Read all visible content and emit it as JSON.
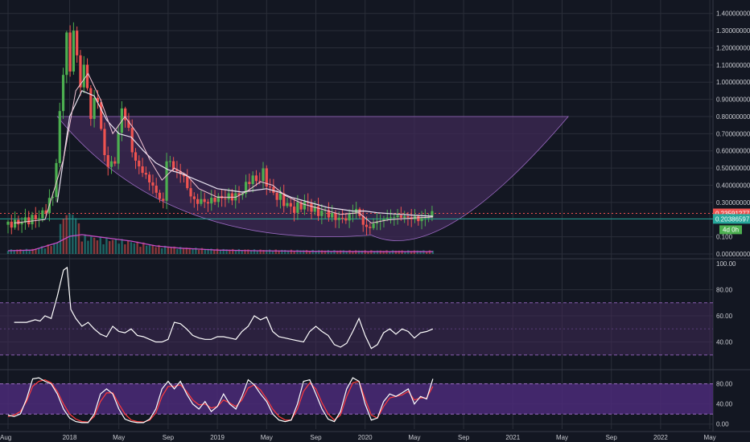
{
  "colors": {
    "background": "#131722",
    "grid": "#2a2e39",
    "up": "#26a69a",
    "up_strong": "#4caf50",
    "down": "#ef5350",
    "ma": "#e8e2f0",
    "band": "#3f2a56",
    "rsi_line": "#ffffff",
    "stoch_k": "#ffffff",
    "stoch_d": "#ff3b3b",
    "vol_ma": "#c44dc6",
    "price_red_tag": "#ef5350",
    "price_green_tag": "#26a69a",
    "countdown_tag": "#4caf50"
  },
  "chart_data": [
    {
      "type": "candlestick",
      "panel": "price",
      "y_axis_ticks": [
        "1.40000000",
        "1.30000000",
        "1.20000000",
        "1.10000000",
        "1.00000000",
        "0.90000000",
        "0.80000000",
        "0.70000000",
        "0.60000000",
        "0.50000000",
        "0.40000000",
        "0.30000000",
        "0.100",
        "0.00000000"
      ],
      "ylim": [
        0.0,
        1.45
      ],
      "x_axis_ticks": [
        "Aug",
        "2018",
        "May",
        "Sep",
        "2019",
        "May",
        "Sep",
        "2020",
        "May",
        "Sep",
        "2021",
        "May",
        "Sep",
        "2022",
        "May"
      ],
      "tick_months": [
        0,
        5,
        9,
        13,
        17,
        21,
        25,
        29,
        33,
        37,
        41,
        45,
        49,
        53,
        57
      ],
      "price_tags": [
        {
          "label": "0.23591277",
          "value": 0.236,
          "color": "red"
        },
        {
          "label": "0.20386597",
          "value": 0.204,
          "color": "green"
        },
        {
          "label": "4d 0h",
          "color": "countdown"
        }
      ],
      "close_path": [
        [
          0,
          0.17
        ],
        [
          1,
          0.18
        ],
        [
          2,
          0.2
        ],
        [
          3,
          0.22
        ],
        [
          4,
          0.35
        ],
        [
          5,
          1.3
        ],
        [
          5.3,
          1.05
        ],
        [
          5.7,
          1.4
        ],
        [
          6,
          0.95
        ],
        [
          6.5,
          1.1
        ],
        [
          7,
          0.8
        ],
        [
          7.5,
          0.95
        ],
        [
          8,
          0.6
        ],
        [
          8.5,
          0.5
        ],
        [
          9,
          0.55
        ],
        [
          9.5,
          0.85
        ],
        [
          10,
          0.75
        ],
        [
          10.5,
          0.55
        ],
        [
          11,
          0.5
        ],
        [
          11.5,
          0.45
        ],
        [
          12,
          0.4
        ],
        [
          12.5,
          0.33
        ],
        [
          13,
          0.3
        ],
        [
          13.2,
          0.6
        ],
        [
          13.6,
          0.5
        ],
        [
          14,
          0.48
        ],
        [
          14.5,
          0.46
        ],
        [
          15,
          0.35
        ],
        [
          15.5,
          0.3
        ],
        [
          16,
          0.31
        ],
        [
          16.5,
          0.3
        ],
        [
          17,
          0.32
        ],
        [
          18,
          0.33
        ],
        [
          19,
          0.34
        ],
        [
          19.5,
          0.38
        ],
        [
          20,
          0.45
        ],
        [
          20.5,
          0.42
        ],
        [
          21,
          0.47
        ],
        [
          21.5,
          0.38
        ],
        [
          22,
          0.34
        ],
        [
          22.5,
          0.32
        ],
        [
          23,
          0.28
        ],
        [
          23.5,
          0.26
        ],
        [
          24,
          0.28
        ],
        [
          24.5,
          0.3
        ],
        [
          25,
          0.26
        ],
        [
          25.5,
          0.24
        ],
        [
          26,
          0.25
        ],
        [
          26.5,
          0.22
        ],
        [
          27,
          0.21
        ],
        [
          27.5,
          0.2
        ],
        [
          28,
          0.22
        ],
        [
          28.5,
          0.27
        ],
        [
          29,
          0.19
        ],
        [
          29.5,
          0.14
        ],
        [
          30,
          0.18
        ],
        [
          31,
          0.21
        ],
        [
          32,
          0.22
        ],
        [
          33,
          0.21
        ],
        [
          34,
          0.2
        ],
        [
          34.5,
          0.23
        ]
      ],
      "ma_short": [
        [
          0.5,
          0.18
        ],
        [
          3,
          0.2
        ],
        [
          4.5,
          0.55
        ],
        [
          5.5,
          0.95
        ],
        [
          6.5,
          1.05
        ],
        [
          7.5,
          0.9
        ],
        [
          8.5,
          0.7
        ],
        [
          9.5,
          0.8
        ],
        [
          10.5,
          0.7
        ],
        [
          11.5,
          0.55
        ],
        [
          12.5,
          0.43
        ],
        [
          13.5,
          0.5
        ],
        [
          14.5,
          0.46
        ],
        [
          15.5,
          0.38
        ],
        [
          17,
          0.33
        ],
        [
          18.5,
          0.33
        ],
        [
          19.5,
          0.37
        ],
        [
          20.5,
          0.42
        ],
        [
          21.5,
          0.4
        ],
        [
          22.5,
          0.34
        ],
        [
          24,
          0.29
        ],
        [
          25.5,
          0.26
        ],
        [
          27,
          0.23
        ],
        [
          28.5,
          0.24
        ],
        [
          29.5,
          0.18
        ],
        [
          31,
          0.2
        ],
        [
          33,
          0.21
        ],
        [
          34.5,
          0.215
        ]
      ],
      "ma_long": [
        [
          4,
          0.3
        ],
        [
          5,
          0.8
        ],
        [
          6,
          0.95
        ],
        [
          7,
          0.92
        ],
        [
          8,
          0.78
        ],
        [
          9,
          0.7
        ],
        [
          10,
          0.68
        ],
        [
          11,
          0.6
        ],
        [
          12,
          0.53
        ],
        [
          13,
          0.49
        ],
        [
          14,
          0.47
        ],
        [
          15,
          0.44
        ],
        [
          16,
          0.41
        ],
        [
          17,
          0.38
        ],
        [
          18,
          0.37
        ],
        [
          19,
          0.36
        ],
        [
          20,
          0.37
        ],
        [
          21,
          0.38
        ],
        [
          22,
          0.36
        ],
        [
          23,
          0.33
        ],
        [
          24,
          0.31
        ],
        [
          25,
          0.29
        ],
        [
          26,
          0.27
        ],
        [
          27,
          0.26
        ],
        [
          28,
          0.25
        ],
        [
          29,
          0.25
        ],
        [
          30,
          0.24
        ],
        [
          31,
          0.235
        ],
        [
          32,
          0.23
        ],
        [
          33,
          0.225
        ],
        [
          34.5,
          0.22
        ]
      ],
      "cup_band": {
        "top": 0.8,
        "left_month": 4,
        "right_month": 45.5,
        "bottom_month": 29.5,
        "bottom_value": 0.11
      },
      "volume_ma": [
        [
          0,
          0.1
        ],
        [
          2,
          0.12
        ],
        [
          4,
          0.35
        ],
        [
          5,
          0.55
        ],
        [
          6,
          0.6
        ],
        [
          8,
          0.5
        ],
        [
          10,
          0.4
        ],
        [
          12,
          0.25
        ],
        [
          14,
          0.18
        ],
        [
          17,
          0.12
        ],
        [
          20,
          0.1
        ],
        [
          25,
          0.08
        ],
        [
          30,
          0.07
        ],
        [
          34.5,
          0.07
        ]
      ]
    },
    {
      "type": "line",
      "panel": "rsi",
      "y_axis_ticks": [
        "100.00",
        "80.00",
        "60.00",
        "40.00"
      ],
      "ylim": [
        20,
        100
      ],
      "band": [
        30,
        70
      ],
      "values": [
        [
          0.5,
          55
        ],
        [
          1.5,
          55
        ],
        [
          2.2,
          57
        ],
        [
          2.6,
          56
        ],
        [
          3,
          60
        ],
        [
          3.5,
          58
        ],
        [
          4,
          75
        ],
        [
          4.5,
          95
        ],
        [
          4.8,
          97
        ],
        [
          5.1,
          65
        ],
        [
          5.5,
          58
        ],
        [
          6,
          52
        ],
        [
          6.5,
          55
        ],
        [
          7,
          50
        ],
        [
          7.5,
          46
        ],
        [
          8,
          44
        ],
        [
          8.5,
          52
        ],
        [
          9,
          48
        ],
        [
          9.5,
          47
        ],
        [
          10,
          50
        ],
        [
          10.5,
          45
        ],
        [
          11,
          44
        ],
        [
          11.5,
          42
        ],
        [
          12,
          40
        ],
        [
          12.5,
          40
        ],
        [
          13,
          42
        ],
        [
          13.5,
          55
        ],
        [
          14,
          54
        ],
        [
          14.5,
          50
        ],
        [
          15,
          45
        ],
        [
          15.5,
          43
        ],
        [
          16,
          42
        ],
        [
          16.5,
          42
        ],
        [
          17,
          44
        ],
        [
          17.5,
          44
        ],
        [
          18,
          43
        ],
        [
          18.5,
          42
        ],
        [
          19,
          48
        ],
        [
          19.5,
          52
        ],
        [
          20,
          60
        ],
        [
          20.5,
          57
        ],
        [
          21,
          59
        ],
        [
          21.5,
          48
        ],
        [
          22,
          44
        ],
        [
          22.5,
          43
        ],
        [
          23,
          42
        ],
        [
          23.5,
          41
        ],
        [
          24,
          40
        ],
        [
          24.5,
          48
        ],
        [
          25,
          52
        ],
        [
          25.5,
          48
        ],
        [
          26,
          45
        ],
        [
          26.5,
          38
        ],
        [
          27,
          36
        ],
        [
          27.5,
          39
        ],
        [
          28,
          48
        ],
        [
          28.5,
          58
        ],
        [
          29,
          45
        ],
        [
          29.5,
          35
        ],
        [
          30,
          38
        ],
        [
          30.5,
          47
        ],
        [
          31,
          50
        ],
        [
          31.5,
          46
        ],
        [
          32,
          50
        ],
        [
          32.5,
          48
        ],
        [
          33,
          43
        ],
        [
          33.5,
          47
        ],
        [
          34,
          48
        ],
        [
          34.5,
          50
        ]
      ]
    },
    {
      "type": "line",
      "panel": "stochastic",
      "y_axis_ticks": [
        "80.00",
        "40.00",
        "0.00"
      ],
      "ylim": [
        -10,
        105
      ],
      "band": [
        20,
        80
      ],
      "series_k": [
        [
          0,
          18
        ],
        [
          0.5,
          15
        ],
        [
          1,
          20
        ],
        [
          1.5,
          50
        ],
        [
          2,
          90
        ],
        [
          2.5,
          92
        ],
        [
          3,
          85
        ],
        [
          3.5,
          80
        ],
        [
          4,
          60
        ],
        [
          4.5,
          30
        ],
        [
          5,
          12
        ],
        [
          5.5,
          5
        ],
        [
          6,
          3
        ],
        [
          6.5,
          3
        ],
        [
          7,
          20
        ],
        [
          7.5,
          60
        ],
        [
          8,
          70
        ],
        [
          8.5,
          60
        ],
        [
          9,
          30
        ],
        [
          9.5,
          10
        ],
        [
          10,
          5
        ],
        [
          10.5,
          3
        ],
        [
          11,
          3
        ],
        [
          11.5,
          10
        ],
        [
          12,
          30
        ],
        [
          12.5,
          70
        ],
        [
          13,
          85
        ],
        [
          13.5,
          70
        ],
        [
          14,
          85
        ],
        [
          14.5,
          60
        ],
        [
          15,
          40
        ],
        [
          15.5,
          30
        ],
        [
          16,
          45
        ],
        [
          16.5,
          25
        ],
        [
          17,
          35
        ],
        [
          17.5,
          60
        ],
        [
          18,
          40
        ],
        [
          18.5,
          30
        ],
        [
          19,
          55
        ],
        [
          19.5,
          88
        ],
        [
          20,
          78
        ],
        [
          20.5,
          60
        ],
        [
          21,
          45
        ],
        [
          21.5,
          20
        ],
        [
          22,
          8
        ],
        [
          22.5,
          5
        ],
        [
          23,
          8
        ],
        [
          23.5,
          40
        ],
        [
          24,
          85
        ],
        [
          24.5,
          88
        ],
        [
          25,
          60
        ],
        [
          25.5,
          30
        ],
        [
          26,
          10
        ],
        [
          26.5,
          5
        ],
        [
          27,
          25
        ],
        [
          27.5,
          70
        ],
        [
          28,
          92
        ],
        [
          28.5,
          85
        ],
        [
          29,
          40
        ],
        [
          29.5,
          8
        ],
        [
          30,
          12
        ],
        [
          30.5,
          45
        ],
        [
          31,
          60
        ],
        [
          31.5,
          55
        ],
        [
          32,
          62
        ],
        [
          32.5,
          70
        ],
        [
          33,
          40
        ],
        [
          33.5,
          55
        ],
        [
          34,
          50
        ],
        [
          34.5,
          90
        ]
      ],
      "series_d": [
        [
          0,
          15
        ],
        [
          0.5,
          18
        ],
        [
          1,
          25
        ],
        [
          1.5,
          45
        ],
        [
          2,
          75
        ],
        [
          2.5,
          85
        ],
        [
          3,
          88
        ],
        [
          3.5,
          82
        ],
        [
          4,
          65
        ],
        [
          4.5,
          40
        ],
        [
          5,
          20
        ],
        [
          5.5,
          10
        ],
        [
          6,
          5
        ],
        [
          6.5,
          4
        ],
        [
          7,
          15
        ],
        [
          7.5,
          45
        ],
        [
          8,
          62
        ],
        [
          8.5,
          62
        ],
        [
          9,
          40
        ],
        [
          9.5,
          20
        ],
        [
          10,
          8
        ],
        [
          10.5,
          5
        ],
        [
          11,
          4
        ],
        [
          11.5,
          8
        ],
        [
          12,
          22
        ],
        [
          12.5,
          55
        ],
        [
          13,
          75
        ],
        [
          13.5,
          75
        ],
        [
          14,
          78
        ],
        [
          14.5,
          65
        ],
        [
          15,
          48
        ],
        [
          15.5,
          38
        ],
        [
          16,
          40
        ],
        [
          16.5,
          32
        ],
        [
          17,
          35
        ],
        [
          17.5,
          48
        ],
        [
          18,
          42
        ],
        [
          18.5,
          35
        ],
        [
          19,
          48
        ],
        [
          19.5,
          72
        ],
        [
          20,
          78
        ],
        [
          20.5,
          68
        ],
        [
          21,
          50
        ],
        [
          21.5,
          30
        ],
        [
          22,
          15
        ],
        [
          22.5,
          8
        ],
        [
          23,
          8
        ],
        [
          23.5,
          30
        ],
        [
          24,
          65
        ],
        [
          24.5,
          82
        ],
        [
          25,
          70
        ],
        [
          25.5,
          42
        ],
        [
          26,
          20
        ],
        [
          26.5,
          8
        ],
        [
          27,
          18
        ],
        [
          27.5,
          55
        ],
        [
          28,
          82
        ],
        [
          28.5,
          85
        ],
        [
          29,
          50
        ],
        [
          29.5,
          18
        ],
        [
          30,
          12
        ],
        [
          30.5,
          35
        ],
        [
          31,
          52
        ],
        [
          31.5,
          55
        ],
        [
          32,
          58
        ],
        [
          32.5,
          65
        ],
        [
          33,
          48
        ],
        [
          33.5,
          52
        ],
        [
          34,
          52
        ],
        [
          34.5,
          75
        ]
      ]
    }
  ]
}
